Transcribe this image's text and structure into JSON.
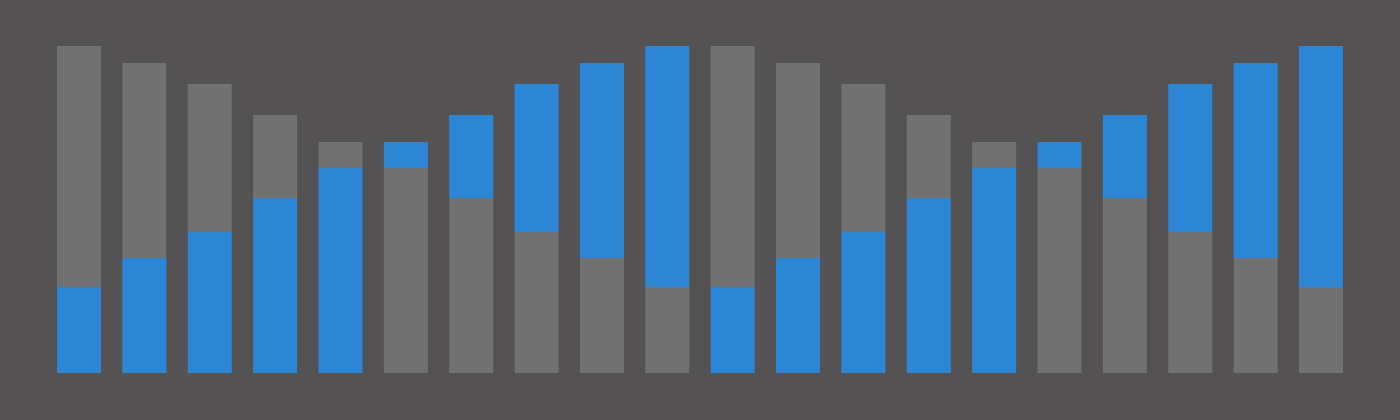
{
  "chart_data": {
    "type": "stacked-bar",
    "ylim": [
      0,
      327
    ],
    "series": [
      {
        "values": [
          86,
          115,
          141,
          175,
          205,
          205,
          175,
          141,
          115,
          86,
          86,
          115,
          141,
          175,
          205,
          205,
          175,
          141,
          115,
          86
        ],
        "colors": [
          "#2b87d6",
          "#2b87d6",
          "#2b87d6",
          "#2b87d6",
          "#2b87d6",
          "#717171",
          "#717171",
          "#717171",
          "#717171",
          "#717171",
          "#2b87d6",
          "#2b87d6",
          "#2b87d6",
          "#2b87d6",
          "#2b87d6",
          "#717171",
          "#717171",
          "#717171",
          "#717171",
          "#717171"
        ]
      },
      {
        "values": [
          241,
          195,
          148,
          83,
          26,
          26,
          83,
          148,
          195,
          241,
          241,
          195,
          148,
          83,
          26,
          26,
          83,
          148,
          195,
          241
        ],
        "colors": [
          "#717171",
          "#717171",
          "#717171",
          "#717171",
          "#717171",
          "#2b87d6",
          "#2b87d6",
          "#2b87d6",
          "#2b87d6",
          "#2b87d6",
          "#717171",
          "#717171",
          "#717171",
          "#717171",
          "#717171",
          "#2b87d6",
          "#2b87d6",
          "#2b87d6",
          "#2b87d6",
          "#2b87d6"
        ]
      }
    ]
  }
}
